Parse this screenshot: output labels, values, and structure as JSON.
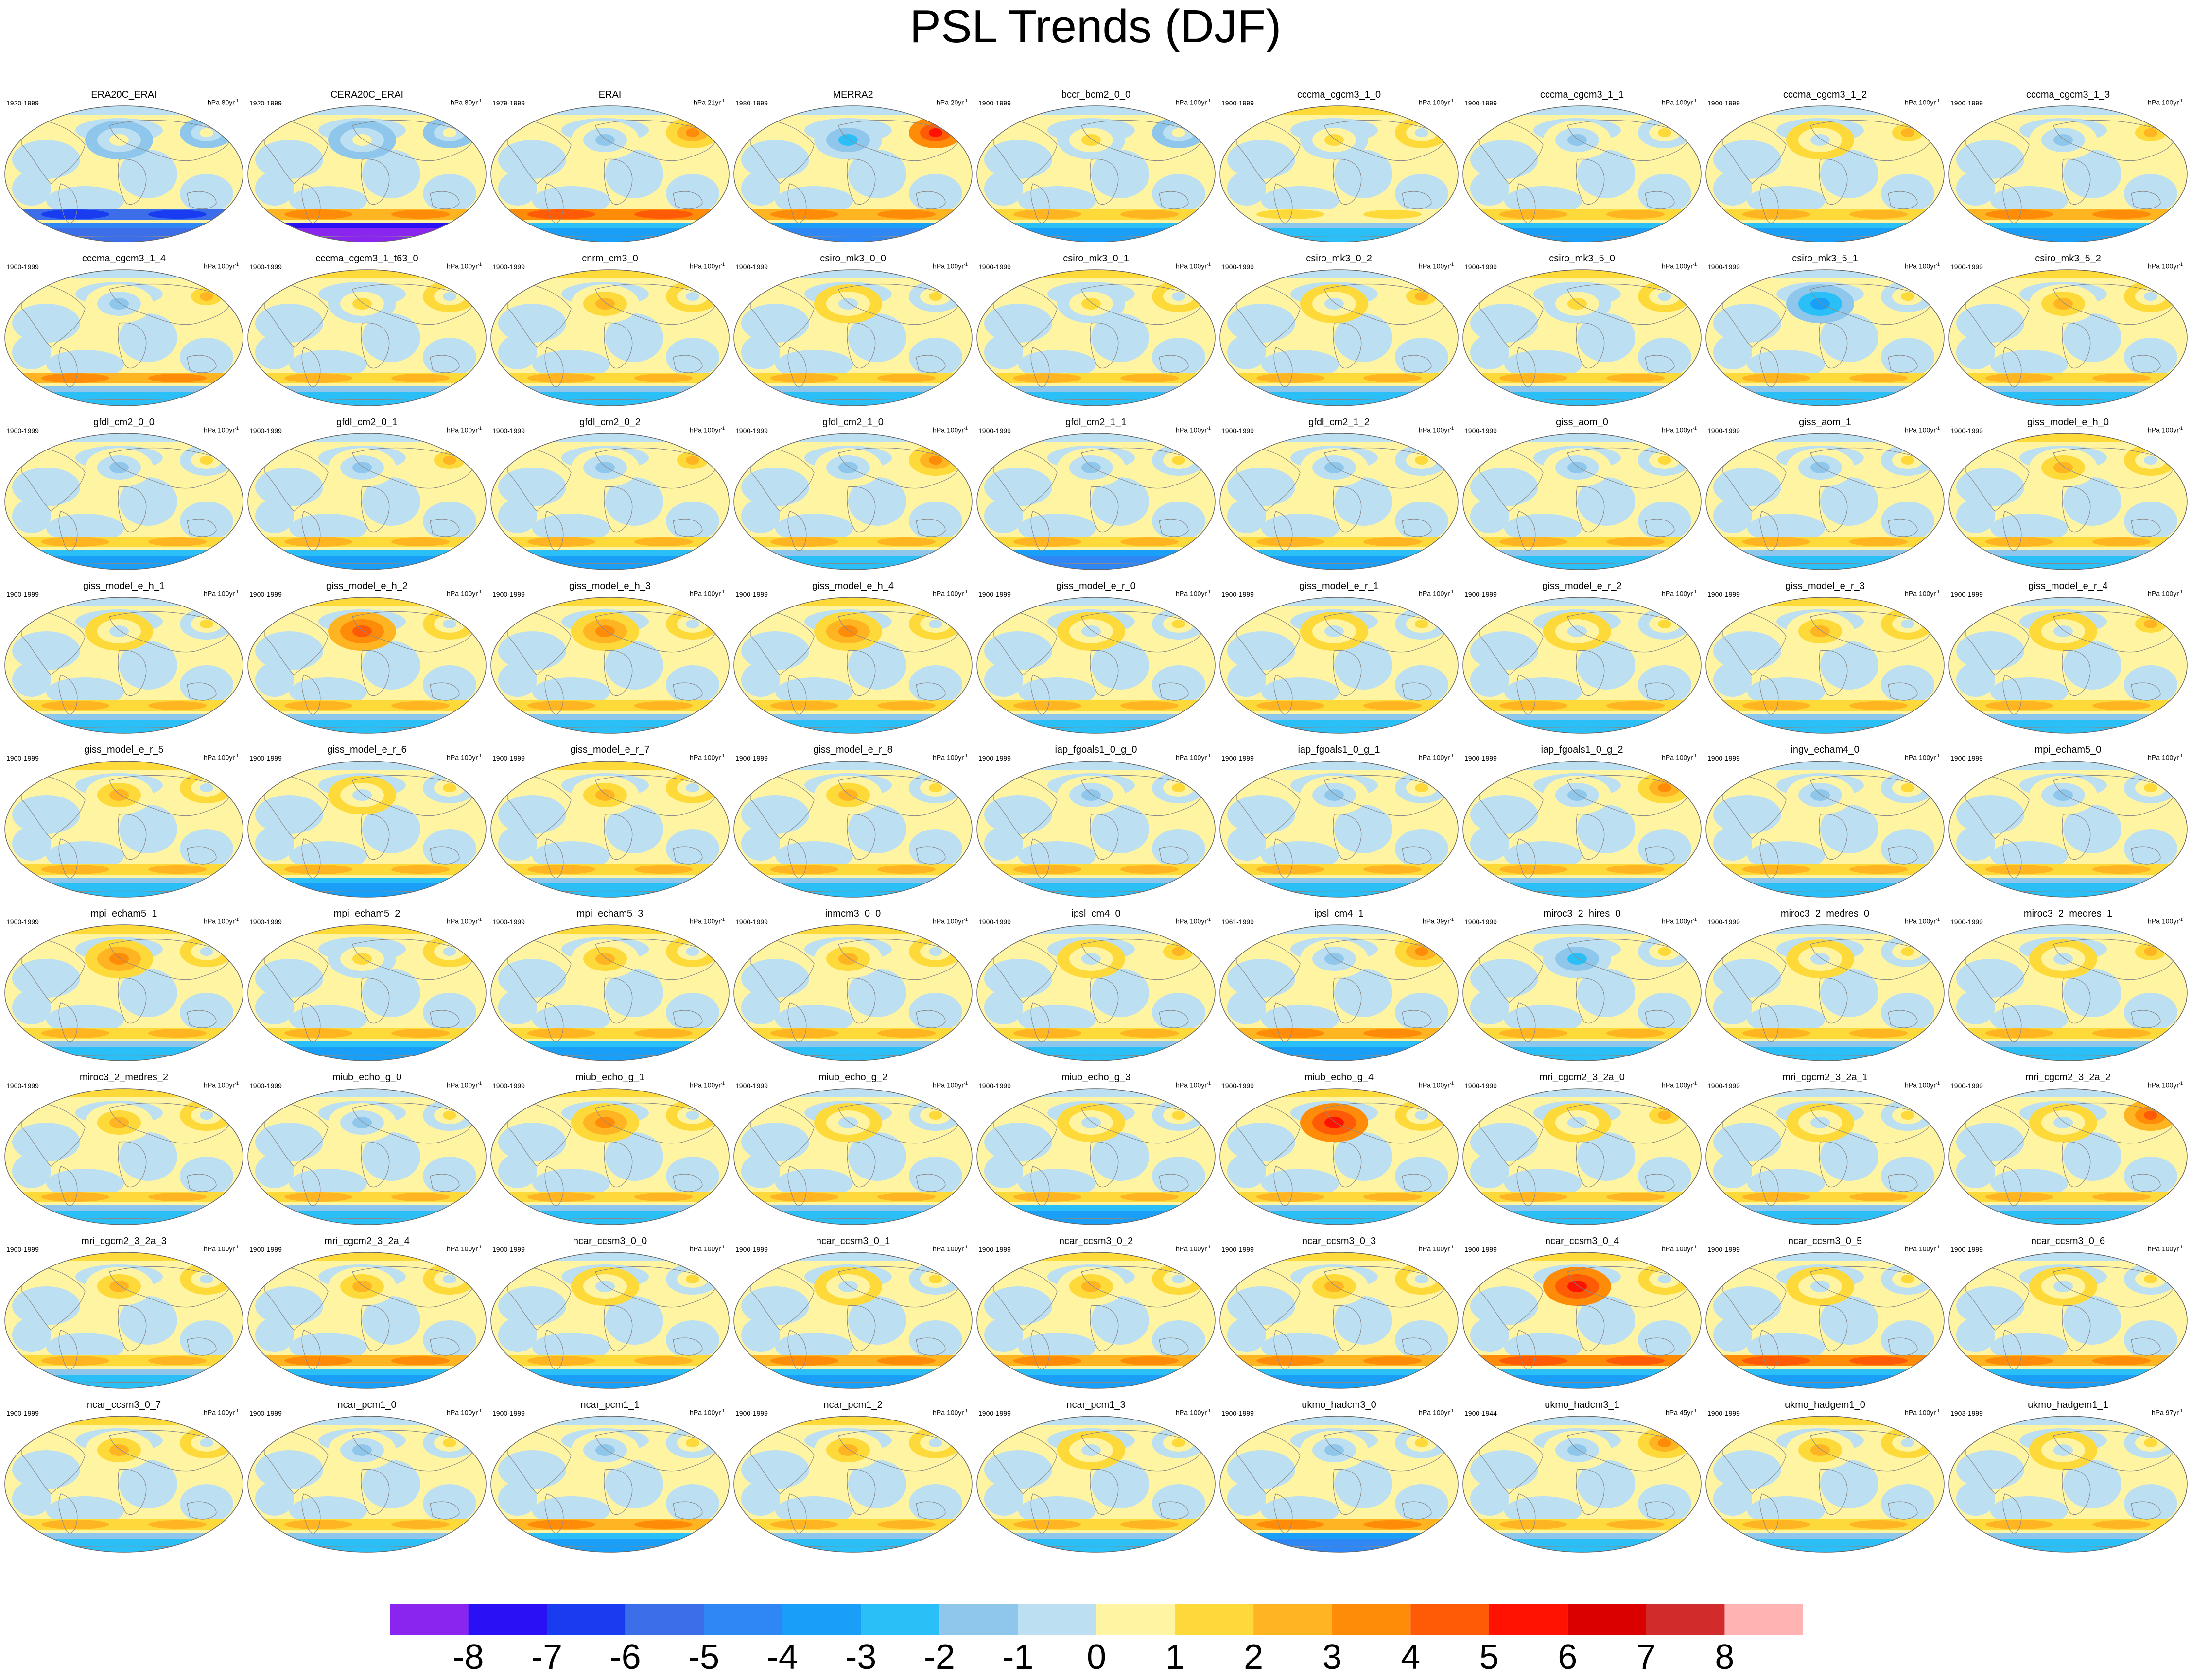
{
  "title": "PSL Trends (DJF)",
  "chart_data": {
    "type": "heatmap",
    "title": "PSL Trends (DJF)",
    "colorbar": {
      "tick_labels": [
        "-8",
        "-7",
        "-6",
        "-5",
        "-4",
        "-3",
        "-2",
        "-1",
        "0",
        "1",
        "2",
        "3",
        "4",
        "5",
        "6",
        "7",
        "8"
      ],
      "colors": [
        "#8a25ef",
        "#2a10f5",
        "#1a3cf0",
        "#3b6ee8",
        "#2f86f5",
        "#199ff7",
        "#2bbff7",
        "#8ec6ec",
        "#bcdff2",
        "#fff4a2",
        "#fed93a",
        "#ffb422",
        "#ff8c08",
        "#ff5a06",
        "#ff1202",
        "#db0000",
        "#d22b2b",
        "#ffb3b3"
      ]
    },
    "grid": {
      "rows": 9,
      "cols": 9
    },
    "panels": [
      {
        "name": "ERA20C_ERAI",
        "period": "1920-1999",
        "unit": "hPa 80yr",
        "pattern": [
          0.5,
          0.6,
          -6,
          -5
        ]
      },
      {
        "name": "CERA20C_ERAI",
        "period": "1920-1999",
        "unit": "hPa 80yr",
        "pattern": [
          0.6,
          0.4,
          2,
          -8
        ]
      },
      {
        "name": "ERAI",
        "period": "1979-1999",
        "unit": "hPa 21yr",
        "pattern": [
          -2,
          3,
          3,
          -3
        ]
      },
      {
        "name": "MERRA2",
        "period": "1980-1999",
        "unit": "hPa 20yr",
        "pattern": [
          -3,
          5,
          2,
          -4
        ]
      },
      {
        "name": "bccr_bcm2_0_0",
        "period": "1900-1999",
        "unit": "hPa 100yr",
        "pattern": [
          1,
          0.5,
          1,
          -3
        ]
      },
      {
        "name": "cccma_cgcm3_1_0",
        "period": "1900-1999",
        "unit": "hPa 100yr",
        "pattern": [
          1,
          -1,
          0.5,
          -2
        ]
      },
      {
        "name": "cccma_cgcm3_1_1",
        "period": "1900-1999",
        "unit": "hPa 100yr",
        "pattern": [
          -2,
          1,
          1,
          -3
        ]
      },
      {
        "name": "cccma_cgcm3_1_2",
        "period": "1900-1999",
        "unit": "hPa 100yr",
        "pattern": [
          -1,
          2,
          1,
          -3
        ]
      },
      {
        "name": "cccma_cgcm3_1_3",
        "period": "1900-1999",
        "unit": "hPa 100yr",
        "pattern": [
          -2,
          2,
          2,
          -3
        ]
      },
      {
        "name": "cccma_cgcm3_1_4",
        "period": "1900-1999",
        "unit": "hPa 100yr",
        "pattern": [
          -2,
          2,
          2,
          -2
        ]
      },
      {
        "name": "cccma_cgcm3_1_t63_0",
        "period": "1900-1999",
        "unit": "hPa 100yr",
        "pattern": [
          1,
          -1,
          1,
          -2
        ]
      },
      {
        "name": "cnrm_cm3_0",
        "period": "1900-1999",
        "unit": "hPa 100yr",
        "pattern": [
          2,
          -1,
          1,
          -2
        ]
      },
      {
        "name": "csiro_mk3_0_0",
        "period": "1900-1999",
        "unit": "hPa 100yr",
        "pattern": [
          -1,
          1,
          1,
          -2
        ]
      },
      {
        "name": "csiro_mk3_0_1",
        "period": "1900-1999",
        "unit": "hPa 100yr",
        "pattern": [
          1,
          -1,
          1,
          -2
        ]
      },
      {
        "name": "csiro_mk3_0_2",
        "period": "1900-1999",
        "unit": "hPa 100yr",
        "pattern": [
          -1,
          2,
          1,
          -2
        ]
      },
      {
        "name": "csiro_mk3_5_0",
        "period": "1900-1999",
        "unit": "hPa 100yr",
        "pattern": [
          1,
          -1,
          1,
          -2
        ]
      },
      {
        "name": "csiro_mk3_5_1",
        "period": "1900-1999",
        "unit": "hPa 100yr",
        "pattern": [
          -4,
          1,
          1,
          -2
        ]
      },
      {
        "name": "csiro_mk3_5_2",
        "period": "1900-1999",
        "unit": "hPa 100yr",
        "pattern": [
          2,
          -1,
          1,
          -2
        ]
      },
      {
        "name": "gfdl_cm2_0_0",
        "period": "1900-1999",
        "unit": "hPa 100yr",
        "pattern": [
          -2,
          1,
          1,
          -3
        ]
      },
      {
        "name": "gfdl_cm2_0_1",
        "period": "1900-1999",
        "unit": "hPa 100yr",
        "pattern": [
          -2,
          2,
          1,
          -3
        ]
      },
      {
        "name": "gfdl_cm2_0_2",
        "period": "1900-1999",
        "unit": "hPa 100yr",
        "pattern": [
          -2,
          2,
          1,
          -3
        ]
      },
      {
        "name": "gfdl_cm2_1_0",
        "period": "1900-1999",
        "unit": "hPa 100yr",
        "pattern": [
          -2,
          3,
          1,
          -2
        ]
      },
      {
        "name": "gfdl_cm2_1_1",
        "period": "1900-1999",
        "unit": "hPa 100yr",
        "pattern": [
          -2,
          1,
          1,
          -4
        ]
      },
      {
        "name": "gfdl_cm2_1_2",
        "period": "1900-1999",
        "unit": "hPa 100yr",
        "pattern": [
          -2,
          1,
          1,
          -3
        ]
      },
      {
        "name": "giss_aom_0",
        "period": "1900-1999",
        "unit": "hPa 100yr",
        "pattern": [
          -2,
          1,
          1,
          -2
        ]
      },
      {
        "name": "giss_aom_1",
        "period": "1900-1999",
        "unit": "hPa 100yr",
        "pattern": [
          -2,
          1,
          1,
          -2
        ]
      },
      {
        "name": "giss_model_e_h_0",
        "period": "1900-1999",
        "unit": "hPa 100yr",
        "pattern": [
          2,
          -1,
          1,
          -2
        ]
      },
      {
        "name": "giss_model_e_h_1",
        "period": "1900-1999",
        "unit": "hPa 100yr",
        "pattern": [
          -1,
          1,
          1,
          -2
        ]
      },
      {
        "name": "giss_model_e_h_2",
        "period": "1900-1999",
        "unit": "hPa 100yr",
        "pattern": [
          4,
          -1,
          1,
          -2
        ]
      },
      {
        "name": "giss_model_e_h_3",
        "period": "1900-1999",
        "unit": "hPa 100yr",
        "pattern": [
          3,
          -1,
          1,
          -2
        ]
      },
      {
        "name": "giss_model_e_h_4",
        "period": "1900-1999",
        "unit": "hPa 100yr",
        "pattern": [
          3,
          -1,
          1,
          -2
        ]
      },
      {
        "name": "giss_model_e_r_0",
        "period": "1900-1999",
        "unit": "hPa 100yr",
        "pattern": [
          -1,
          1,
          1,
          -2
        ]
      },
      {
        "name": "giss_model_e_r_1",
        "period": "1900-1999",
        "unit": "hPa 100yr",
        "pattern": [
          -1,
          1,
          1,
          -2
        ]
      },
      {
        "name": "giss_model_e_r_2",
        "period": "1900-1999",
        "unit": "hPa 100yr",
        "pattern": [
          -1,
          1,
          1,
          -2
        ]
      },
      {
        "name": "giss_model_e_r_3",
        "period": "1900-1999",
        "unit": "hPa 100yr",
        "pattern": [
          2,
          -1,
          1,
          -2
        ]
      },
      {
        "name": "giss_model_e_r_4",
        "period": "1900-1999",
        "unit": "hPa 100yr",
        "pattern": [
          -1,
          2,
          1,
          -2
        ]
      },
      {
        "name": "giss_model_e_r_5",
        "period": "1900-1999",
        "unit": "hPa 100yr",
        "pattern": [
          2,
          -1,
          1,
          -2
        ]
      },
      {
        "name": "giss_model_e_r_6",
        "period": "1900-1999",
        "unit": "hPa 100yr",
        "pattern": [
          -1,
          1,
          1,
          -3
        ]
      },
      {
        "name": "giss_model_e_r_7",
        "period": "1900-1999",
        "unit": "hPa 100yr",
        "pattern": [
          2,
          -1,
          1,
          -2
        ]
      },
      {
        "name": "giss_model_e_r_8",
        "period": "1900-1999",
        "unit": "hPa 100yr",
        "pattern": [
          2,
          1,
          1,
          -2
        ]
      },
      {
        "name": "iap_fgoals1_0_g_0",
        "period": "1900-1999",
        "unit": "hPa 100yr",
        "pattern": [
          -2,
          1,
          1,
          -2
        ]
      },
      {
        "name": "iap_fgoals1_0_g_1",
        "period": "1900-1999",
        "unit": "hPa 100yr",
        "pattern": [
          -2,
          1,
          1,
          -2
        ]
      },
      {
        "name": "iap_fgoals1_0_g_2",
        "period": "1900-1999",
        "unit": "hPa 100yr",
        "pattern": [
          -2,
          3,
          1,
          -2
        ]
      },
      {
        "name": "ingv_echam4_0",
        "period": "1900-1999",
        "unit": "hPa 100yr",
        "pattern": [
          -2,
          1,
          1,
          -2
        ]
      },
      {
        "name": "mpi_echam5_0",
        "period": "1900-1999",
        "unit": "hPa 100yr",
        "pattern": [
          -2,
          1,
          1,
          -2
        ]
      },
      {
        "name": "mpi_echam5_1",
        "period": "1900-1999",
        "unit": "hPa 100yr",
        "pattern": [
          3,
          -1,
          1,
          -2
        ]
      },
      {
        "name": "mpi_echam5_2",
        "period": "1900-1999",
        "unit": "hPa 100yr",
        "pattern": [
          1,
          -1,
          1,
          -3
        ]
      },
      {
        "name": "mpi_echam5_3",
        "period": "1900-1999",
        "unit": "hPa 100yr",
        "pattern": [
          2,
          -1,
          1,
          -3
        ]
      },
      {
        "name": "inmcm3_0_0",
        "period": "1900-1999",
        "unit": "hPa 100yr",
        "pattern": [
          2,
          -1,
          1,
          -2
        ]
      },
      {
        "name": "ipsl_cm4_0",
        "period": "1900-1999",
        "unit": "hPa 100yr",
        "pattern": [
          -1,
          2,
          1,
          -2
        ]
      },
      {
        "name": "ipsl_cm4_1",
        "period": "1961-1999",
        "unit": "hPa 39yr",
        "pattern": [
          -2,
          3,
          2,
          -3
        ]
      },
      {
        "name": "miroc3_2_hires_0",
        "period": "1900-1999",
        "unit": "hPa 100yr",
        "pattern": [
          -3,
          1,
          1,
          -2
        ]
      },
      {
        "name": "miroc3_2_medres_0",
        "period": "1900-1999",
        "unit": "hPa 100yr",
        "pattern": [
          -1,
          1,
          1,
          -2
        ]
      },
      {
        "name": "miroc3_2_medres_1",
        "period": "1900-1999",
        "unit": "hPa 100yr",
        "pattern": [
          -1,
          2,
          1,
          -2
        ]
      },
      {
        "name": "miroc3_2_medres_2",
        "period": "1900-1999",
        "unit": "hPa 100yr",
        "pattern": [
          2,
          -1,
          1,
          -2
        ]
      },
      {
        "name": "miub_echo_g_0",
        "period": "1900-1999",
        "unit": "hPa 100yr",
        "pattern": [
          -2,
          1,
          1,
          -2
        ]
      },
      {
        "name": "miub_echo_g_1",
        "period": "1900-1999",
        "unit": "hPa 100yr",
        "pattern": [
          3,
          -1,
          1,
          -2
        ]
      },
      {
        "name": "miub_echo_g_2",
        "period": "1900-1999",
        "unit": "hPa 100yr",
        "pattern": [
          -1,
          1,
          1,
          -2
        ]
      },
      {
        "name": "miub_echo_g_3",
        "period": "1900-1999",
        "unit": "hPa 100yr",
        "pattern": [
          -1,
          1,
          1,
          -3
        ]
      },
      {
        "name": "miub_echo_g_4",
        "period": "1900-1999",
        "unit": "hPa 100yr",
        "pattern": [
          5,
          -1,
          1,
          -2
        ]
      },
      {
        "name": "mri_cgcm2_3_2a_0",
        "period": "1900-1999",
        "unit": "hPa 100yr",
        "pattern": [
          -1,
          2,
          1,
          -2
        ]
      },
      {
        "name": "mri_cgcm2_3_2a_1",
        "period": "1900-1999",
        "unit": "hPa 100yr",
        "pattern": [
          -1,
          1,
          1,
          -2
        ]
      },
      {
        "name": "mri_cgcm2_3_2a_2",
        "period": "1900-1999",
        "unit": "hPa 100yr",
        "pattern": [
          -1,
          4,
          1,
          -2
        ]
      },
      {
        "name": "mri_cgcm2_3_2a_3",
        "period": "1900-1999",
        "unit": "hPa 100yr",
        "pattern": [
          2,
          -1,
          1,
          -2
        ]
      },
      {
        "name": "mri_cgcm2_3_2a_4",
        "period": "1900-1999",
        "unit": "hPa 100yr",
        "pattern": [
          2,
          -1,
          2,
          -3
        ]
      },
      {
        "name": "ncar_ccsm3_0_0",
        "period": "1900-1999",
        "unit": "hPa 100yr",
        "pattern": [
          -1,
          1,
          1,
          -3
        ]
      },
      {
        "name": "ncar_ccsm3_0_1",
        "period": "1900-1999",
        "unit": "hPa 100yr",
        "pattern": [
          -1,
          1,
          2,
          -3
        ]
      },
      {
        "name": "ncar_ccsm3_0_2",
        "period": "1900-1999",
        "unit": "hPa 100yr",
        "pattern": [
          2,
          -1,
          2,
          -3
        ]
      },
      {
        "name": "ncar_ccsm3_0_3",
        "period": "1900-1999",
        "unit": "hPa 100yr",
        "pattern": [
          2,
          -1,
          2,
          -3
        ]
      },
      {
        "name": "ncar_ccsm3_0_4",
        "period": "1900-1999",
        "unit": "hPa 100yr",
        "pattern": [
          5,
          -1,
          3,
          -3
        ]
      },
      {
        "name": "ncar_ccsm3_0_5",
        "period": "1900-1999",
        "unit": "hPa 100yr",
        "pattern": [
          -1,
          1,
          3,
          -3
        ]
      },
      {
        "name": "ncar_ccsm3_0_6",
        "period": "1900-1999",
        "unit": "hPa 100yr",
        "pattern": [
          -1,
          1,
          2,
          -3
        ]
      },
      {
        "name": "ncar_ccsm3_0_7",
        "period": "1900-1999",
        "unit": "hPa 100yr",
        "pattern": [
          2,
          -1,
          1,
          -2
        ]
      },
      {
        "name": "ncar_pcm1_0",
        "period": "1900-1999",
        "unit": "hPa 100yr",
        "pattern": [
          -2,
          1,
          1,
          -2
        ]
      },
      {
        "name": "ncar_pcm1_1",
        "period": "1900-1999",
        "unit": "hPa 100yr",
        "pattern": [
          -2,
          1,
          2,
          -3
        ]
      },
      {
        "name": "ncar_pcm1_2",
        "period": "1900-1999",
        "unit": "hPa 100yr",
        "pattern": [
          2,
          -1,
          1,
          -2
        ]
      },
      {
        "name": "ncar_pcm1_3",
        "period": "1900-1999",
        "unit": "hPa 100yr",
        "pattern": [
          -1,
          1,
          1,
          -2
        ]
      },
      {
        "name": "ukmo_hadcm3_0",
        "period": "1900-1999",
        "unit": "hPa 100yr",
        "pattern": [
          -2,
          1,
          2,
          -4
        ]
      },
      {
        "name": "ukmo_hadcm3_1",
        "period": "1900-1944",
        "unit": "hPa 45yr",
        "pattern": [
          -2,
          3,
          1,
          -2
        ]
      },
      {
        "name": "ukmo_hadgem1_0",
        "period": "1900-1999",
        "unit": "hPa 100yr",
        "pattern": [
          2,
          -1,
          1,
          -2
        ]
      },
      {
        "name": "ukmo_hadgem1_1",
        "period": "1903-1999",
        "unit": "hPa 97yr",
        "pattern": [
          -1,
          1,
          1,
          -2
        ]
      }
    ]
  }
}
